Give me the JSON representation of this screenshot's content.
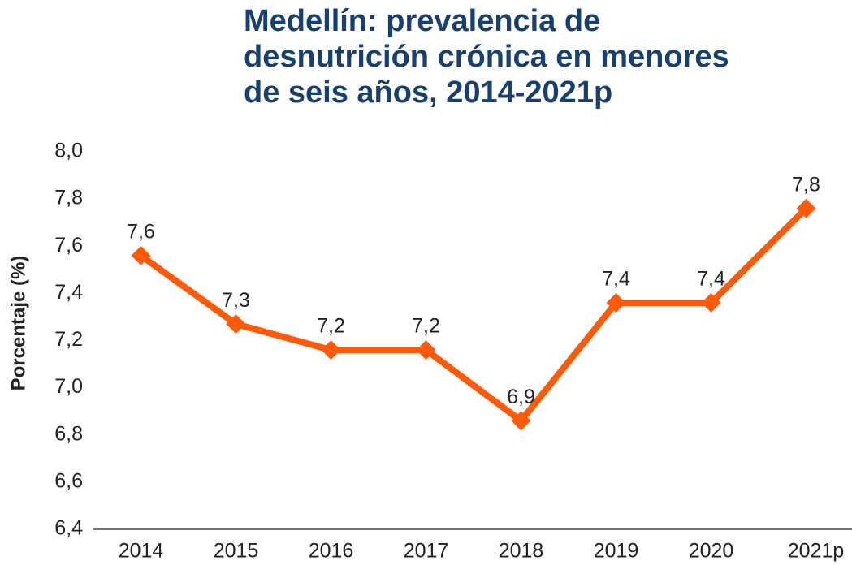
{
  "chart_data": {
    "type": "line",
    "title": [
      "Medellín: prevalencia de",
      "desnutrición crónica en menores",
      "de seis años, 2014-2021p"
    ],
    "y_label": "Porcentaje (%)",
    "categories": [
      "2014",
      "2015",
      "2016",
      "2017",
      "2018",
      "2019",
      "2020",
      "2021p"
    ],
    "values": [
      7.56,
      7.27,
      7.16,
      7.16,
      6.86,
      7.36,
      7.36,
      7.76
    ],
    "value_labels": [
      "7,6",
      "7,3",
      "7,2",
      "7,2",
      "6,9",
      "7,4",
      "7,4",
      "7,8"
    ],
    "color": "#ff5a0a",
    "ylim": [
      6.4,
      8.0
    ],
    "yticks": [
      {
        "value": 6.4,
        "label": "6,4"
      },
      {
        "value": 6.6,
        "label": "6,6"
      },
      {
        "value": 6.8,
        "label": "6,8"
      },
      {
        "value": 7.0,
        "label": "7,0"
      },
      {
        "value": 7.2,
        "label": "7,2"
      },
      {
        "value": 7.4,
        "label": "7,4"
      },
      {
        "value": 7.6,
        "label": "7,6"
      },
      {
        "value": 7.8,
        "label": "7,8"
      },
      {
        "value": 8.0,
        "label": "8,0"
      }
    ],
    "grid": false
  }
}
